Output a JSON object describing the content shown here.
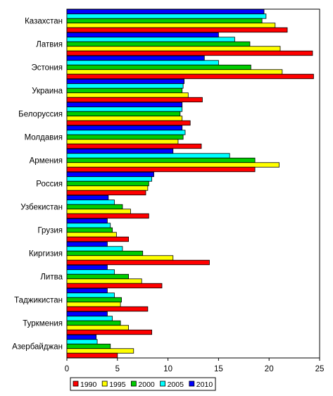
{
  "chart_data": {
    "type": "bar",
    "orientation": "horizontal",
    "categories": [
      "Казахстан",
      "Латвия",
      "Эстония",
      "Украина",
      "Белоруссия",
      "Молдавия",
      "Армения",
      "Россия",
      "Узбекистан",
      "Грузия",
      "Киргизия",
      "Литва",
      "Таджикистан",
      "Туркмения",
      "Азербайджан"
    ],
    "series": [
      {
        "name": "1990",
        "color": "#ff0000",
        "values": [
          21.8,
          24.3,
          24.4,
          13.4,
          12.2,
          13.3,
          18.6,
          7.8,
          8.1,
          6.1,
          14.1,
          9.4,
          8.0,
          8.4,
          5.0
        ]
      },
      {
        "name": "1995",
        "color": "#ffff00",
        "values": [
          20.6,
          21.1,
          21.3,
          12.0,
          11.4,
          11.0,
          21.0,
          8.0,
          6.3,
          4.9,
          10.5,
          7.4,
          5.3,
          6.1,
          6.6
        ]
      },
      {
        "name": "2000",
        "color": "#00cc00",
        "values": [
          19.3,
          18.1,
          18.2,
          11.4,
          11.2,
          11.5,
          18.6,
          8.1,
          5.5,
          4.5,
          7.5,
          6.1,
          5.4,
          5.3,
          4.3
        ]
      },
      {
        "name": "2005",
        "color": "#00ffff",
        "values": [
          19.7,
          16.6,
          15.0,
          11.5,
          11.4,
          11.7,
          16.1,
          8.4,
          4.7,
          4.3,
          5.5,
          4.7,
          4.7,
          4.5,
          3.0
        ]
      },
      {
        "name": "2010",
        "color": "#0000ff",
        "values": [
          19.5,
          15.0,
          13.6,
          11.6,
          11.4,
          11.4,
          10.5,
          8.6,
          4.1,
          4.0,
          4.0,
          4.0,
          4.0,
          4.0,
          2.9
        ]
      }
    ],
    "xlim": [
      0,
      25
    ],
    "xticks": [
      0,
      5,
      10,
      15,
      20,
      25
    ],
    "title": "",
    "xlabel": "",
    "ylabel": "",
    "grid": false,
    "legend_position": "bottom"
  }
}
